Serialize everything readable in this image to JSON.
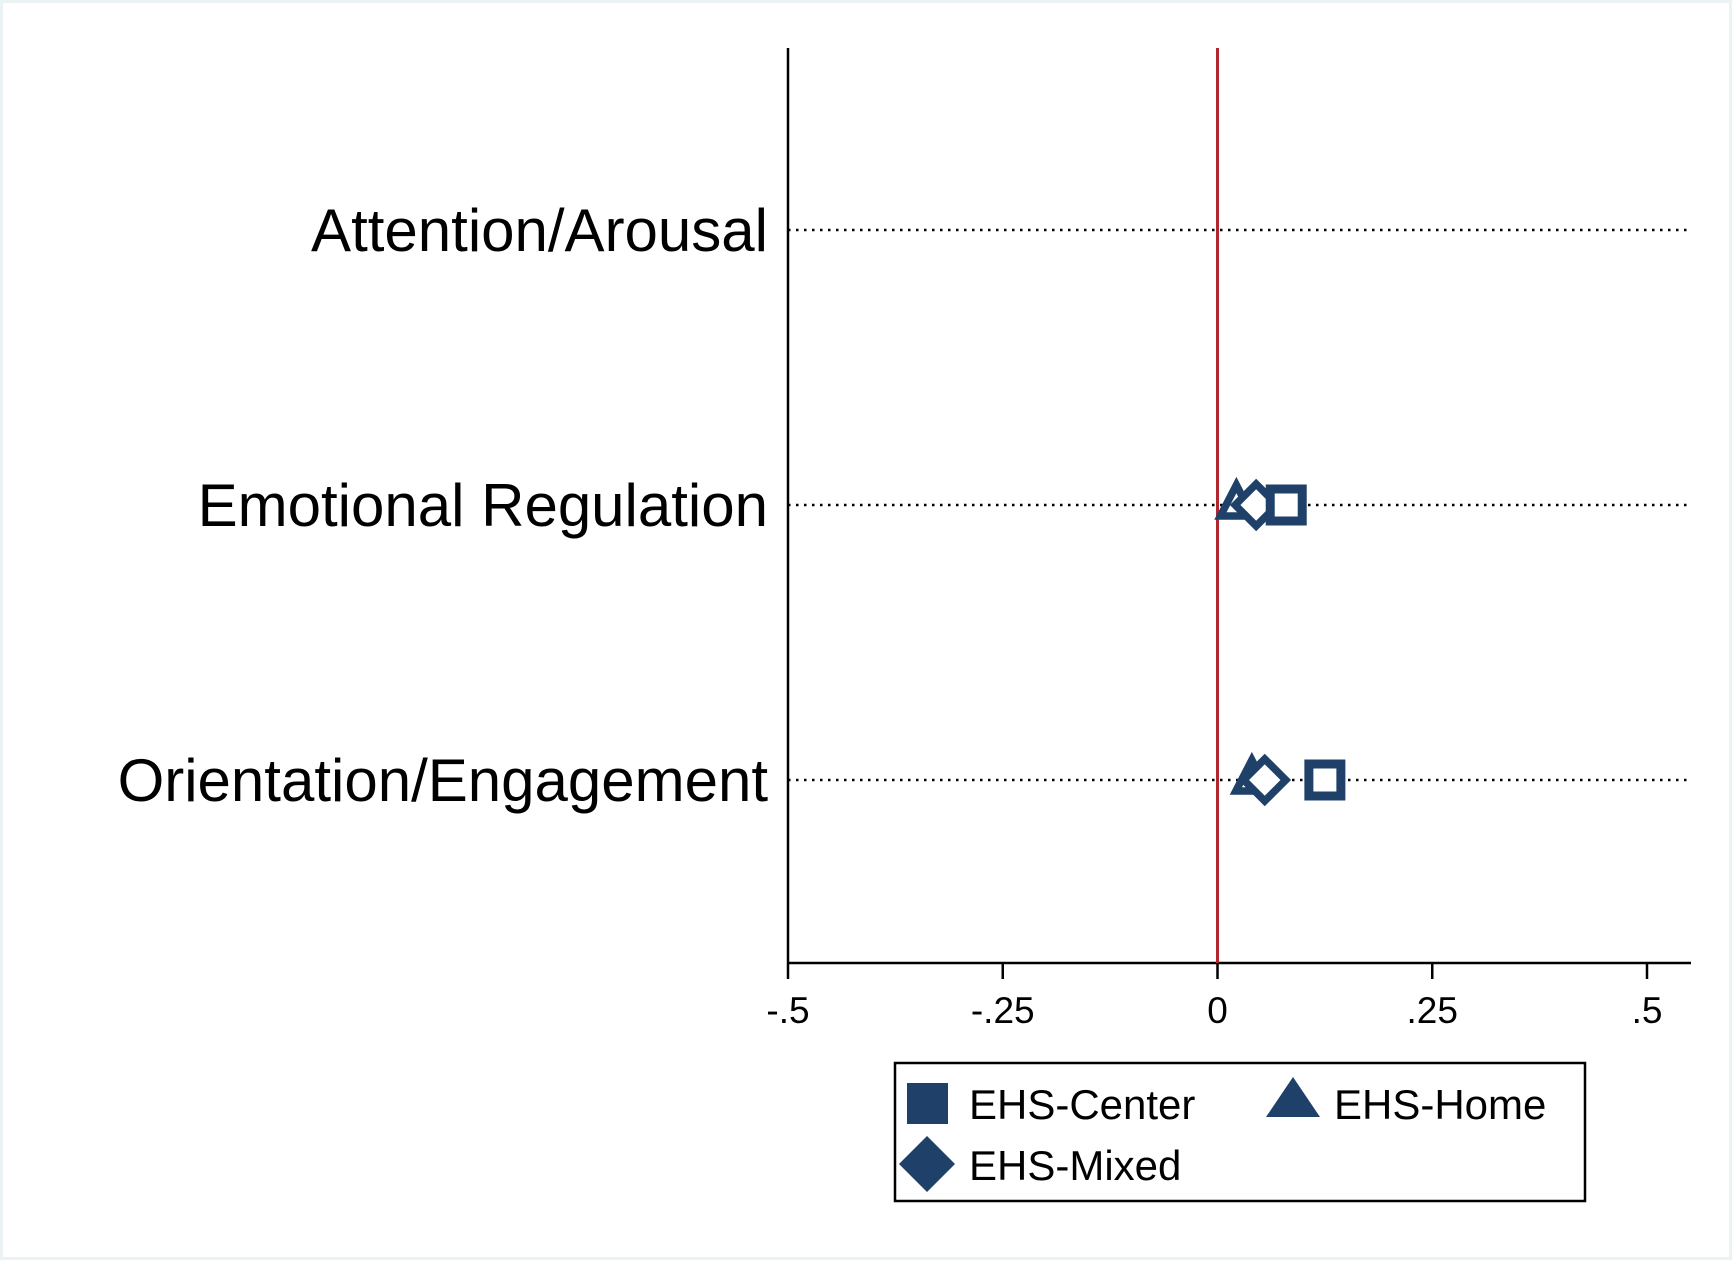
{
  "chart_data": {
    "type": "scatter",
    "orientation": "horizontal",
    "categories": [
      "Attention/Arousal",
      "Emotional Regulation",
      "Orientation/Engagement"
    ],
    "xlim": [
      -0.5,
      0.55
    ],
    "x_ticks": [
      -0.5,
      -0.25,
      0,
      0.25,
      0.5
    ],
    "x_tick_labels": [
      "-.5",
      "-.25",
      "0",
      ".25",
      ".5"
    ],
    "reference_line": {
      "x": 0,
      "color": "#b0282e"
    },
    "grid": "dotted horizontal lines at each category",
    "series": [
      {
        "name": "EHS-Center",
        "marker": "square",
        "values": [
          null,
          0.08,
          0.125
        ]
      },
      {
        "name": "EHS-Home",
        "marker": "triangle",
        "values": [
          null,
          0.022,
          0.04
        ]
      },
      {
        "name": "EHS-Mixed",
        "marker": "diamond",
        "values": [
          null,
          0.045,
          0.055
        ]
      }
    ],
    "legend": {
      "position": "bottom"
    },
    "colors": {
      "marker": "#1f4068",
      "reference": "#b0282e",
      "axis": "#000000"
    }
  }
}
